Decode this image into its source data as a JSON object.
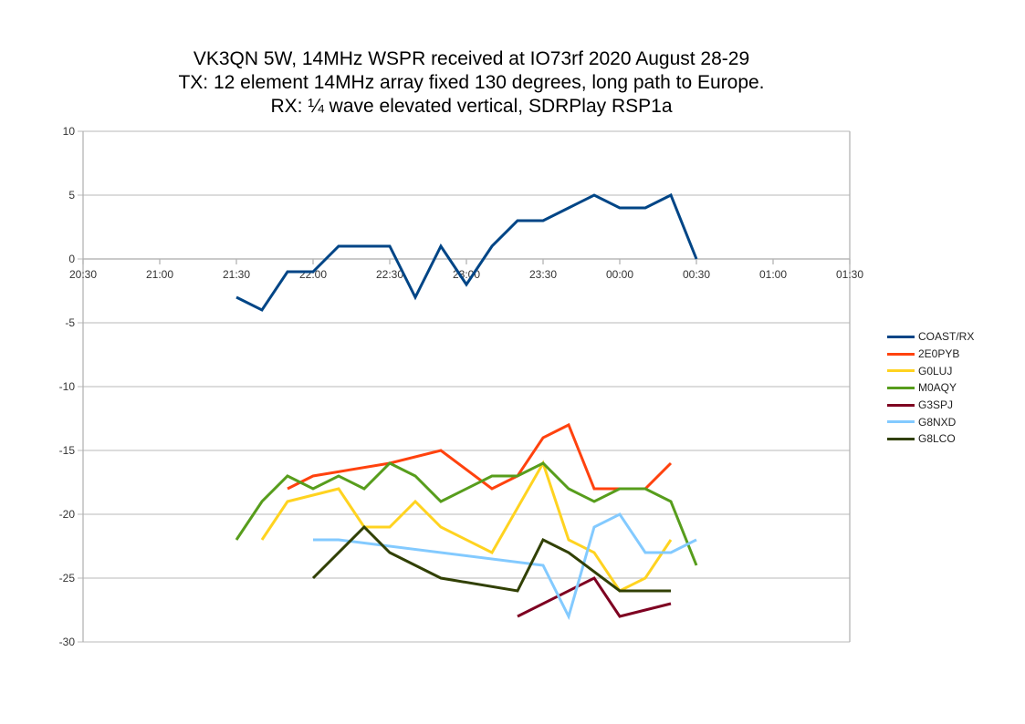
{
  "chart_data": {
    "type": "line",
    "title": "VK3QN 5W, 14MHz WSPR received at IO73rf 2020 August 28-29",
    "subtitle_lines": [
      "TX: 12 element 14MHz array fixed 130 degrees, long path to Europe.",
      "RX: ¼ wave elevated vertical, SDRPlay RSP1a"
    ],
    "xlabel": "",
    "ylabel": "",
    "x_ticks": [
      "20:30",
      "21:00",
      "21:30",
      "22:00",
      "22:30",
      "23:00",
      "23:30",
      "00:00",
      "00:30",
      "01:00",
      "01:30"
    ],
    "x_unit": "minutes since 20:30",
    "xlim": [
      0,
      300
    ],
    "ylim": [
      -30,
      10
    ],
    "y_ticks": [
      10,
      5,
      0,
      -5,
      -10,
      -15,
      -20,
      -25,
      -30
    ],
    "grid": "horizontal",
    "legend_position": "right",
    "series": [
      {
        "name": "COAST/RX",
        "color": "#004586",
        "points": [
          [
            60,
            -3
          ],
          [
            70,
            -4
          ],
          [
            80,
            -1
          ],
          [
            90,
            -1
          ],
          [
            100,
            1
          ],
          [
            110,
            1
          ],
          [
            120,
            1
          ],
          [
            130,
            -3
          ],
          [
            140,
            1
          ],
          [
            150,
            -2
          ],
          [
            160,
            1
          ],
          [
            170,
            3
          ],
          [
            180,
            3
          ],
          [
            190,
            4
          ],
          [
            200,
            5
          ],
          [
            210,
            4
          ],
          [
            220,
            4
          ],
          [
            230,
            5
          ],
          [
            240,
            0
          ]
        ]
      },
      {
        "name": "2E0PYB",
        "color": "#ff420e",
        "points": [
          [
            80,
            -18
          ],
          [
            90,
            -17
          ],
          [
            120,
            -16
          ],
          [
            140,
            -15
          ],
          [
            160,
            -18
          ],
          [
            170,
            -17
          ],
          [
            180,
            -14
          ],
          [
            190,
            -13
          ],
          [
            200,
            -18
          ],
          [
            210,
            -18
          ],
          [
            220,
            -18
          ],
          [
            230,
            -16
          ]
        ]
      },
      {
        "name": "G0LUJ",
        "color": "#ffd320",
        "points": [
          [
            70,
            -22
          ],
          [
            80,
            -19
          ],
          [
            100,
            -18
          ],
          [
            110,
            -21
          ],
          [
            120,
            -21
          ],
          [
            130,
            -19
          ],
          [
            140,
            -21
          ],
          [
            160,
            -23
          ],
          [
            180,
            -16
          ],
          [
            190,
            -22
          ],
          [
            200,
            -23
          ],
          [
            210,
            -26
          ],
          [
            220,
            -25
          ],
          [
            230,
            -22
          ]
        ]
      },
      {
        "name": "M0AQY",
        "color": "#579d1c",
        "points": [
          [
            60,
            -22
          ],
          [
            70,
            -19
          ],
          [
            80,
            -17
          ],
          [
            90,
            -18
          ],
          [
            100,
            -17
          ],
          [
            110,
            -18
          ],
          [
            120,
            -16
          ],
          [
            130,
            -17
          ],
          [
            140,
            -19
          ],
          [
            160,
            -17
          ],
          [
            170,
            -17
          ],
          [
            180,
            -16
          ],
          [
            190,
            -18
          ],
          [
            200,
            -19
          ],
          [
            210,
            -18
          ],
          [
            220,
            -18
          ],
          [
            230,
            -19
          ],
          [
            240,
            -24
          ]
        ]
      },
      {
        "name": "G3SPJ",
        "color": "#7e0021",
        "points": [
          [
            170,
            -28
          ],
          [
            200,
            -25
          ],
          [
            210,
            -28
          ],
          [
            230,
            -27
          ]
        ]
      },
      {
        "name": "G8NXD",
        "color": "#83caff",
        "points": [
          [
            90,
            -22
          ],
          [
            100,
            -22
          ],
          [
            180,
            -24
          ],
          [
            190,
            -28
          ],
          [
            200,
            -21
          ],
          [
            210,
            -20
          ],
          [
            220,
            -23
          ],
          [
            230,
            -23
          ],
          [
            240,
            -22
          ]
        ]
      },
      {
        "name": "G8LCO",
        "color": "#314004",
        "points": [
          [
            90,
            -25
          ],
          [
            110,
            -21
          ],
          [
            120,
            -23
          ],
          [
            140,
            -25
          ],
          [
            170,
            -26
          ],
          [
            180,
            -22
          ],
          [
            190,
            -23
          ],
          [
            210,
            -26
          ],
          [
            220,
            -26
          ],
          [
            230,
            -26
          ]
        ]
      }
    ]
  }
}
